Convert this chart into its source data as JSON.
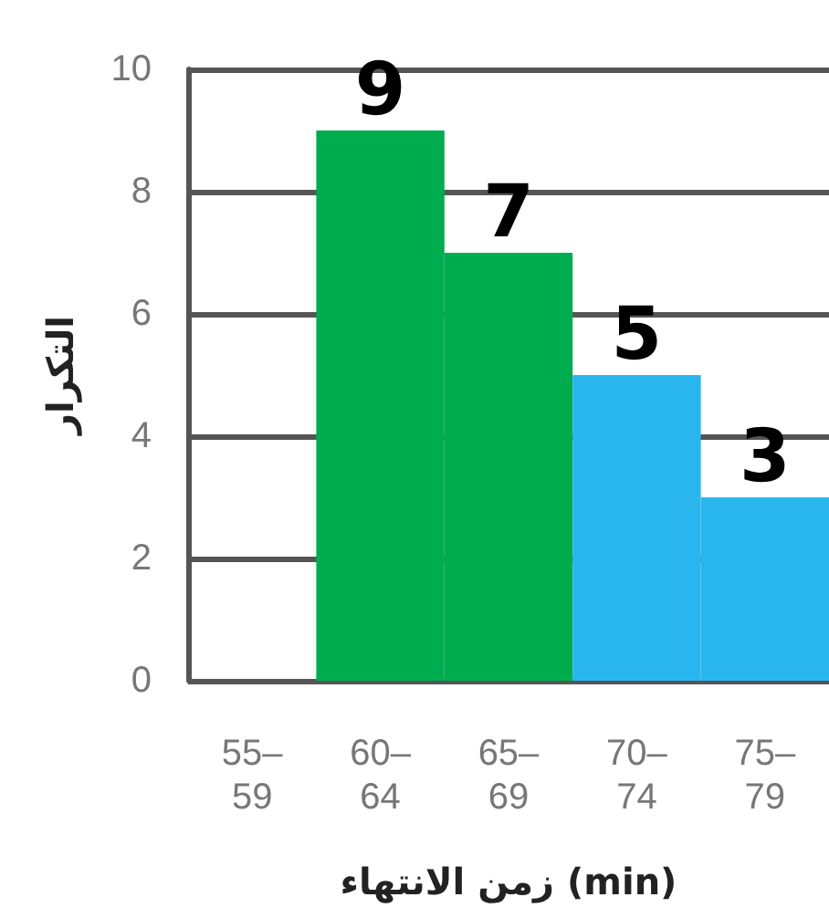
{
  "chart_data": {
    "type": "bar",
    "xlabel": "زمن الانتهاء (min)",
    "ylabel": "التكرار",
    "categories": [
      "55–59",
      "60–64",
      "65–69",
      "70–74",
      "75–79"
    ],
    "values": [
      0,
      9,
      7,
      5,
      3
    ],
    "value_labels": [
      null,
      "9",
      "7",
      "5",
      "3"
    ],
    "colors": [
      "#00ad4e",
      "#00ad4e",
      "#00ad4e",
      "#29b6ef",
      "#29b6ef"
    ],
    "ylim": [
      0,
      10
    ],
    "yticks": [
      0,
      2,
      4,
      6,
      8,
      10
    ],
    "grid": "y"
  }
}
